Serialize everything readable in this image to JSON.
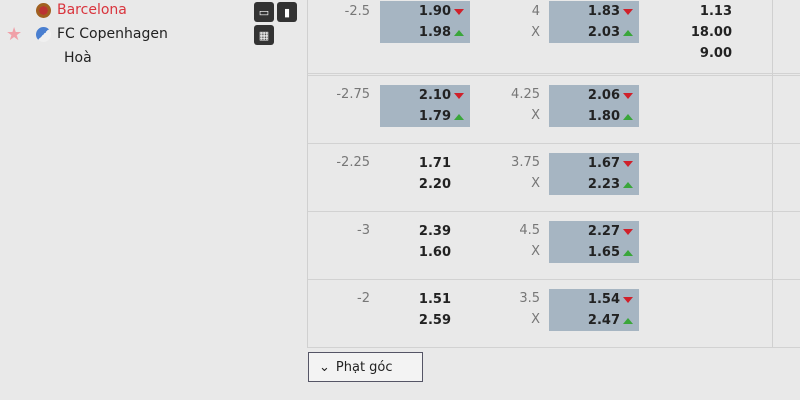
{
  "match": {
    "home": "Barcelona",
    "away": "FC Copenhagen",
    "draw": "Hoà"
  },
  "colors": {
    "home": "#d9343d",
    "highlight": "#a6b5c2",
    "down": "#d0202a",
    "up": "#3aa63a"
  },
  "rows": [
    {
      "hc": "-2.5",
      "h1": "1.90",
      "h1d": "down",
      "h2": "1.98",
      "h2d": "up",
      "hl1": true,
      "ou": "4",
      "ox": "X",
      "o1": "1.83",
      "o1d": "down",
      "o2": "2.03",
      "o2d": "up",
      "hl2": true,
      "x1": [
        "1.13",
        "18.00",
        "9.00"
      ]
    },
    {
      "hc": "-2.75",
      "h1": "2.10",
      "h1d": "down",
      "h2": "1.79",
      "h2d": "up",
      "hl1": true,
      "ou": "4.25",
      "ox": "X",
      "o1": "2.06",
      "o1d": "down",
      "o2": "1.80",
      "o2d": "up",
      "hl2": true
    },
    {
      "hc": "-2.25",
      "h1": "1.71",
      "h2": "2.20",
      "hl1": false,
      "ou": "3.75",
      "ox": "X",
      "o1": "1.67",
      "o1d": "down",
      "o2": "2.23",
      "o2d": "up",
      "hl2": true
    },
    {
      "hc": "-3",
      "h1": "2.39",
      "h2": "1.60",
      "hl1": false,
      "ou": "4.5",
      "ox": "X",
      "o1": "2.27",
      "o1d": "down",
      "o2": "1.65",
      "o2d": "up",
      "hl2": true
    },
    {
      "hc": "-2",
      "h1": "1.51",
      "h2": "2.59",
      "hl1": false,
      "ou": "3.5",
      "ox": "X",
      "o1": "1.54",
      "o1d": "down",
      "o2": "2.47",
      "o2d": "up",
      "hl2": true
    }
  ],
  "corner_button": {
    "label": "Phạt góc",
    "icon": "chevron-down-icon"
  }
}
